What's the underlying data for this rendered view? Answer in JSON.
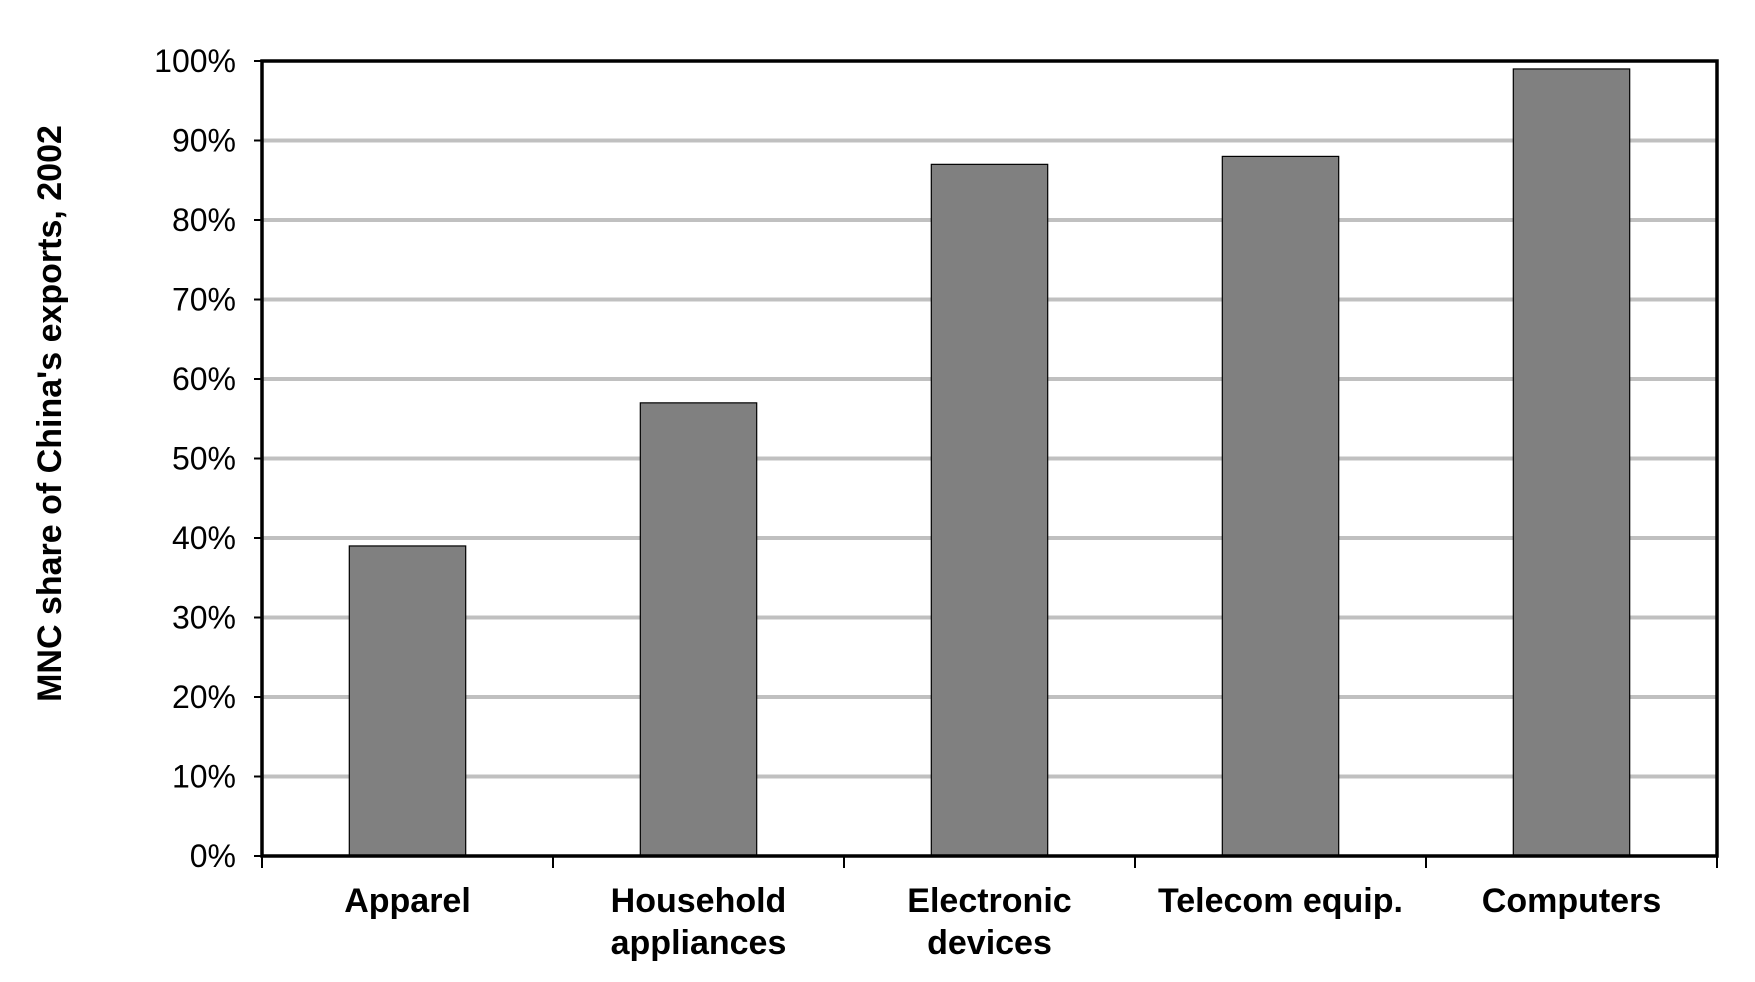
{
  "chart_data": {
    "type": "bar",
    "title": "",
    "xlabel": "",
    "ylabel": "MNC share of China's exports, 2002",
    "categories": [
      [
        "Apparel"
      ],
      [
        "Household",
        "appliances"
      ],
      [
        "Electronic",
        "devices"
      ],
      [
        "Telecom equip."
      ],
      [
        "Computers"
      ]
    ],
    "values": [
      39,
      57,
      87,
      88,
      99
    ],
    "ylim": [
      0,
      100
    ],
    "yticks": [
      0,
      10,
      20,
      30,
      40,
      50,
      60,
      70,
      80,
      90,
      100
    ],
    "ytick_labels": [
      "0%",
      "10%",
      "20%",
      "30%",
      "40%",
      "50%",
      "60%",
      "70%",
      "80%",
      "90%",
      "100%"
    ],
    "grid": true,
    "legend": "none",
    "colors": {
      "bar": "#808080",
      "bar_edge": "#000000",
      "grid": "#c0c0c0",
      "frame": "#000000"
    }
  }
}
